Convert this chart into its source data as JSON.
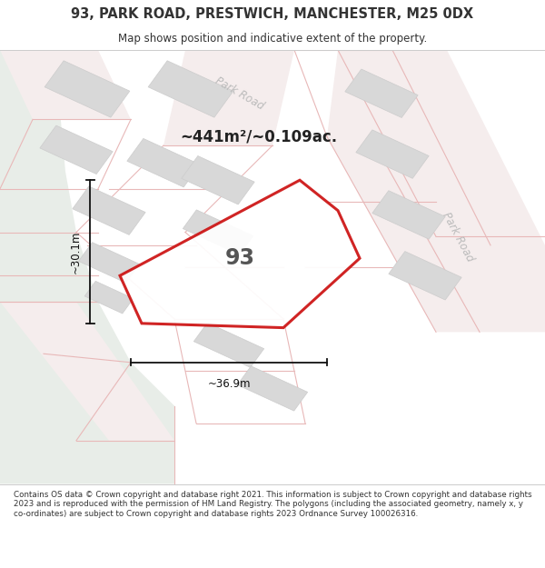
{
  "title": "93, PARK ROAD, PRESTWICH, MANCHESTER, M25 0DX",
  "subtitle": "Map shows position and indicative extent of the property.",
  "area_text": "~441m²/~0.109ac.",
  "property_number": "93",
  "width_label": "~36.9m",
  "height_label": "~30.1m",
  "road_label_top": "Park Road",
  "road_label_bottom": "Park Road",
  "footer": "Contains OS data © Crown copyright and database right 2021. This information is subject to Crown copyright and database rights 2023 and is reproduced with the permission of HM Land Registry. The polygons (including the associated geometry, namely x, y co-ordinates) are subject to Crown copyright and database rights 2023 Ordnance Survey 100026316.",
  "bg_left_color": "#e8ede8",
  "bg_right_color": "#f2f2f2",
  "road_color": "#f5eded",
  "plot_line_color": "#e8b8b8",
  "building_color": "#d8d8d8",
  "building_edge_color": "#cccccc",
  "highlight_color": "#cc1111",
  "highlight_fill": "#ffffff",
  "text_color": "#444444",
  "title_color": "#333333",
  "footer_color": "#333333",
  "dim_color": "#111111",
  "road_text_color": "#bbbbbb"
}
